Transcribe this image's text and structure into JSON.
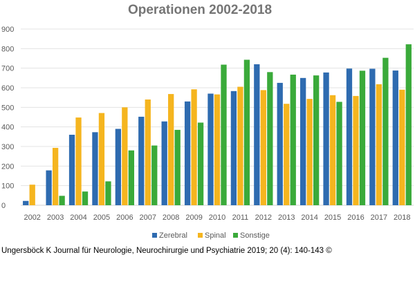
{
  "chart_data": {
    "type": "bar",
    "title": "Operationen 2002-2018",
    "categories": [
      "2002",
      "2003",
      "2004",
      "2005",
      "2006",
      "2007",
      "2008",
      "2009",
      "2010",
      "2011",
      "2012",
      "2013",
      "2014",
      "2015",
      "2016",
      "2017",
      "2018"
    ],
    "series": [
      {
        "name": "Zerebral",
        "color": "#2E6BB0",
        "values": [
          22,
          178,
          360,
          373,
          390,
          452,
          428,
          530,
          570,
          583,
          720,
          625,
          650,
          678,
          698,
          697,
          688
        ]
      },
      {
        "name": "Spinal",
        "color": "#F5B51F",
        "values": [
          105,
          293,
          448,
          471,
          500,
          540,
          568,
          592,
          566,
          605,
          588,
          518,
          543,
          562,
          558,
          618,
          590
        ]
      },
      {
        "name": "Sonstige",
        "color": "#3AAA3A",
        "values": [
          0,
          48,
          70,
          122,
          280,
          305,
          385,
          422,
          718,
          743,
          680,
          667,
          663,
          528,
          687,
          753,
          822
        ]
      }
    ],
    "ylim": [
      0,
      900
    ],
    "yticks": [
      0,
      100,
      200,
      300,
      400,
      500,
      600,
      700,
      800,
      900
    ],
    "xlabel": "",
    "ylabel": "",
    "grid": true,
    "legend_position": "bottom"
  },
  "caption": "Ungersböck K Journal für Neurologie, Neurochirurgie und Psychiatrie 2019; 20 (4): 140-143 ©"
}
